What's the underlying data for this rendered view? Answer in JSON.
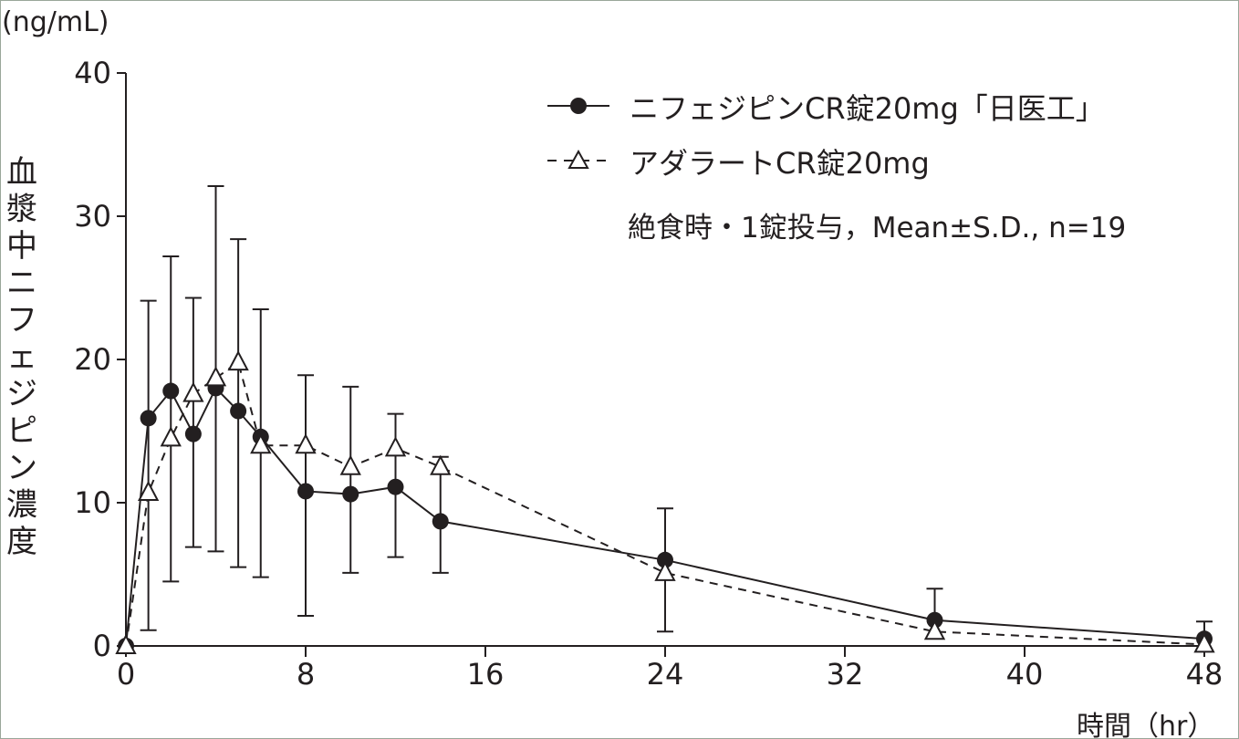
{
  "chart_data": {
    "type": "line",
    "title": "",
    "unit_label": "(ng/mL)",
    "ylabel": "血漿中ニフェジピン濃度",
    "xlabel": "時間（hr）",
    "xlim": [
      0,
      48
    ],
    "ylim": [
      0,
      40
    ],
    "xticks": [
      0,
      8,
      16,
      24,
      32,
      40,
      48
    ],
    "yticks": [
      0,
      10,
      20,
      30,
      40
    ],
    "grid": false,
    "legend_placement": "top-right",
    "annotation": "絶食時・1錠投与，Mean±S.D., n=19",
    "x": [
      0,
      1,
      2,
      3,
      4,
      5,
      6,
      8,
      10,
      12,
      14,
      24,
      36,
      48
    ],
    "series": [
      {
        "name": "ニフェジピンCR錠20mg「日医工」",
        "marker": "filled-circle",
        "line": "solid",
        "values": [
          0,
          15.9,
          17.8,
          14.8,
          18.0,
          16.4,
          14.6,
          10.8,
          10.6,
          11.1,
          8.7,
          6.0,
          1.8,
          0.5
        ]
      },
      {
        "name": "アダラートCR錠20mg",
        "marker": "open-triangle",
        "line": "dashed",
        "values": [
          0,
          10.7,
          14.5,
          17.6,
          18.7,
          19.8,
          14.0,
          14.0,
          12.5,
          13.8,
          12.5,
          5.1,
          1.0,
          0.1
        ]
      }
    ],
    "error_bars": {
      "upper": [
        null,
        24.1,
        27.2,
        24.3,
        32.1,
        28.4,
        23.5,
        18.9,
        18.1,
        16.2,
        13.2,
        9.6,
        4.0,
        1.7
      ],
      "lower": [
        null,
        1.1,
        4.5,
        6.9,
        6.6,
        5.5,
        4.8,
        2.1,
        5.1,
        6.2,
        5.1,
        1.0,
        null,
        null
      ]
    }
  },
  "colors": {
    "ink": "#231f20",
    "background": "#ffffff"
  }
}
